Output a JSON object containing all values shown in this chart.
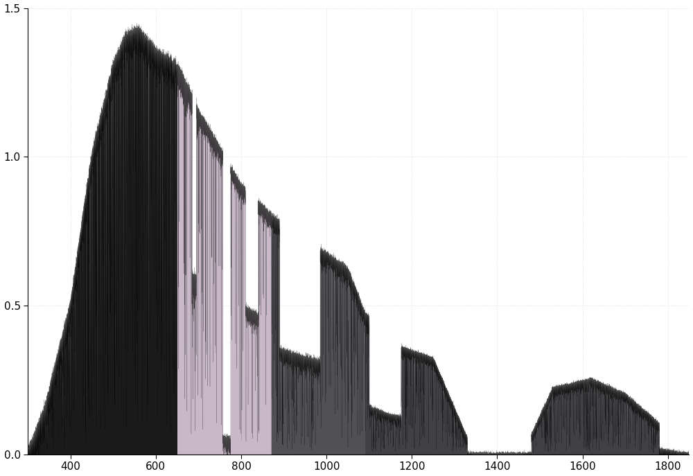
{
  "xlim": [
    300,
    1850
  ],
  "ylim": [
    0,
    1.5
  ],
  "xticks": [
    400,
    600,
    800,
    1000,
    1200,
    1400,
    1600,
    1800
  ],
  "yticks": [
    0,
    0.5,
    1.0,
    1.5
  ],
  "grid": true,
  "background_color": "#ffffff",
  "region1": {
    "xmin": 300,
    "xmax": 650,
    "color": "#1a1a1a",
    "alpha": 1.0
  },
  "region2": {
    "xmin": 650,
    "xmax": 870,
    "color": "#c8b8c8",
    "alpha": 1.0
  },
  "region3": {
    "xmin": 870,
    "xmax": 1090,
    "color": "#505055",
    "alpha": 1.0
  },
  "region4": {
    "xmin": 1090,
    "xmax": 1340,
    "color": "#404045",
    "alpha": 1.0
  },
  "region5": {
    "xmin": 1460,
    "xmax": 1850,
    "color": "#404045",
    "alpha": 1.0
  },
  "figsize": [
    10.0,
    6.87
  ],
  "dpi": 100,
  "grid_color": "#cccccc",
  "grid_alpha": 0.7,
  "tick_labelsize": 11
}
